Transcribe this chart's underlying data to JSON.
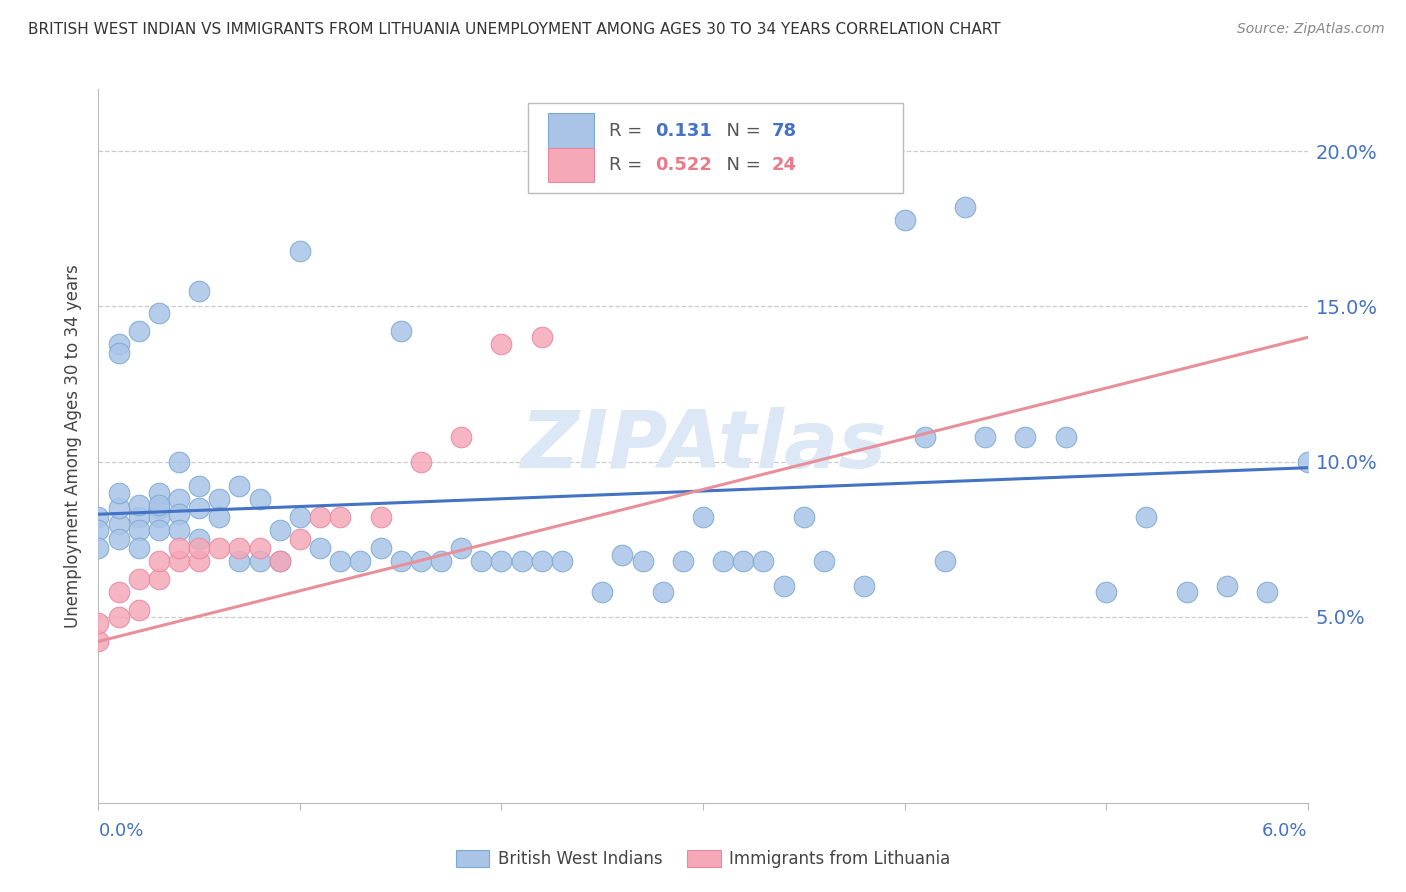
{
  "title": "BRITISH WEST INDIAN VS IMMIGRANTS FROM LITHUANIA UNEMPLOYMENT AMONG AGES 30 TO 34 YEARS CORRELATION CHART",
  "source": "Source: ZipAtlas.com",
  "ylabel": "Unemployment Among Ages 30 to 34 years",
  "yticks": [
    0.0,
    0.05,
    0.1,
    0.15,
    0.2
  ],
  "ytick_labels": [
    "",
    "5.0%",
    "10.0%",
    "15.0%",
    "20.0%"
  ],
  "xlim": [
    0.0,
    0.06
  ],
  "ylim": [
    -0.01,
    0.22
  ],
  "series1_color": "#aac4e8",
  "series2_color": "#f4a8b8",
  "series1_edge": "#7aaad0",
  "series2_edge": "#e888a0",
  "trendline1_color": "#4472c4",
  "trendline2_color": "#e8909a",
  "watermark_color": "#dce8f5",
  "blue_scatter_x": [
    0.0,
    0.0,
    0.001,
    0.001,
    0.001,
    0.001,
    0.002,
    0.002,
    0.002,
    0.002,
    0.003,
    0.003,
    0.003,
    0.003,
    0.003,
    0.004,
    0.004,
    0.004,
    0.004,
    0.005,
    0.005,
    0.005,
    0.006,
    0.006,
    0.007,
    0.007,
    0.008,
    0.008,
    0.009,
    0.009,
    0.01,
    0.011,
    0.012,
    0.013,
    0.014,
    0.015,
    0.016,
    0.017,
    0.018,
    0.019,
    0.02,
    0.021,
    0.022,
    0.023,
    0.025,
    0.026,
    0.027,
    0.028,
    0.029,
    0.03,
    0.031,
    0.032,
    0.033,
    0.034,
    0.035,
    0.036,
    0.038,
    0.04,
    0.042,
    0.044,
    0.046,
    0.048,
    0.05,
    0.052,
    0.054,
    0.056,
    0.058,
    0.06,
    0.041,
    0.043,
    0.015,
    0.01,
    0.005,
    0.003,
    0.002,
    0.001,
    0.001,
    0.0
  ],
  "blue_scatter_y": [
    0.082,
    0.078,
    0.08,
    0.085,
    0.09,
    0.075,
    0.082,
    0.086,
    0.078,
    0.072,
    0.085,
    0.082,
    0.078,
    0.09,
    0.086,
    0.088,
    0.083,
    0.078,
    0.1,
    0.092,
    0.085,
    0.075,
    0.088,
    0.082,
    0.068,
    0.092,
    0.068,
    0.088,
    0.068,
    0.078,
    0.082,
    0.072,
    0.068,
    0.068,
    0.072,
    0.068,
    0.068,
    0.068,
    0.072,
    0.068,
    0.068,
    0.068,
    0.068,
    0.068,
    0.058,
    0.07,
    0.068,
    0.058,
    0.068,
    0.082,
    0.068,
    0.068,
    0.068,
    0.06,
    0.082,
    0.068,
    0.06,
    0.178,
    0.068,
    0.108,
    0.108,
    0.108,
    0.058,
    0.082,
    0.058,
    0.06,
    0.058,
    0.1,
    0.108,
    0.182,
    0.142,
    0.168,
    0.155,
    0.148,
    0.142,
    0.138,
    0.135,
    0.072
  ],
  "pink_scatter_x": [
    0.0,
    0.0,
    0.001,
    0.001,
    0.002,
    0.002,
    0.003,
    0.003,
    0.004,
    0.004,
    0.005,
    0.005,
    0.006,
    0.007,
    0.008,
    0.009,
    0.01,
    0.011,
    0.012,
    0.014,
    0.016,
    0.018,
    0.02,
    0.022
  ],
  "pink_scatter_y": [
    0.042,
    0.048,
    0.05,
    0.058,
    0.052,
    0.062,
    0.062,
    0.068,
    0.068,
    0.072,
    0.068,
    0.072,
    0.072,
    0.072,
    0.072,
    0.068,
    0.075,
    0.082,
    0.082,
    0.082,
    0.1,
    0.108,
    0.138,
    0.14
  ],
  "trendline1_x": [
    0.0,
    0.06
  ],
  "trendline1_y": [
    0.083,
    0.098
  ],
  "trendline2_x": [
    0.0,
    0.06
  ],
  "trendline2_y": [
    0.042,
    0.14
  ]
}
